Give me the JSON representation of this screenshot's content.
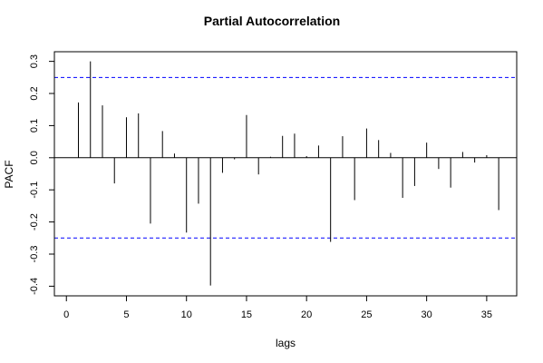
{
  "chart_data": {
    "type": "bar",
    "title": "Partial Autocorrelation",
    "xlabel": "lags",
    "ylabel": "PACF",
    "xlim": [
      -1,
      37.5
    ],
    "ylim": [
      -0.43,
      0.33
    ],
    "x_ticks": [
      0,
      5,
      10,
      15,
      20,
      25,
      30,
      35
    ],
    "x_tick_labels": [
      "0",
      "5",
      "10",
      "15",
      "20",
      "25",
      "30",
      "35"
    ],
    "y_ticks": [
      -0.4,
      -0.3,
      -0.2,
      -0.1,
      0.0,
      0.1,
      0.2,
      0.3
    ],
    "y_tick_labels": [
      "-0.4",
      "-0.3",
      "-0.2",
      "-0.1",
      "0.0",
      "0.1",
      "0.2",
      "0.3"
    ],
    "confidence_bounds": [
      0.25,
      -0.25
    ],
    "confidence_color": "#0000ff",
    "grid": false,
    "lags": [
      1,
      2,
      3,
      4,
      5,
      6,
      7,
      8,
      9,
      10,
      11,
      12,
      13,
      14,
      15,
      16,
      17,
      18,
      19,
      20,
      21,
      22,
      23,
      24,
      25,
      26,
      27,
      28,
      29,
      30,
      31,
      32,
      33,
      34,
      35,
      36
    ],
    "values": [
      0.172,
      0.3,
      0.163,
      -0.08,
      0.126,
      0.138,
      -0.205,
      0.083,
      0.013,
      -0.233,
      -0.143,
      -0.398,
      -0.047,
      -0.005,
      0.133,
      -0.052,
      0.003,
      0.068,
      0.075,
      0.005,
      0.038,
      -0.262,
      0.067,
      -0.132,
      0.091,
      0.055,
      0.015,
      -0.125,
      -0.088,
      0.047,
      -0.035,
      -0.093,
      0.018,
      -0.015,
      0.008,
      -0.163
    ]
  }
}
